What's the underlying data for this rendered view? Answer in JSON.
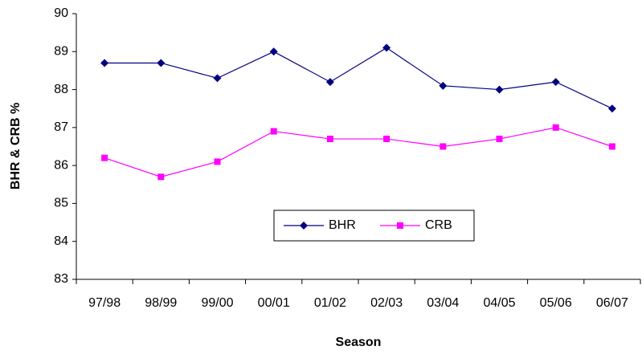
{
  "chart_data": {
    "type": "line",
    "x_label": "Season",
    "y_label": "BHR & CRB %",
    "categories": [
      "97/98",
      "98/99",
      "99/00",
      "00/01",
      "01/02",
      "02/03",
      "03/04",
      "04/05",
      "05/06",
      "06/07"
    ],
    "series": [
      {
        "name": "BHR",
        "color": "#000080",
        "marker": "diamond",
        "values": [
          88.7,
          88.7,
          88.3,
          89.0,
          88.2,
          89.1,
          88.1,
          88.0,
          88.2,
          87.5
        ]
      },
      {
        "name": "CRB",
        "color": "#ff00ff",
        "marker": "square",
        "values": [
          86.2,
          85.7,
          86.1,
          86.9,
          86.7,
          86.7,
          86.5,
          86.7,
          87.0,
          86.5
        ]
      }
    ],
    "ylim": [
      83,
      90
    ],
    "yticks": [
      83,
      84,
      85,
      86,
      87,
      88,
      89,
      90
    ],
    "grid": false
  }
}
